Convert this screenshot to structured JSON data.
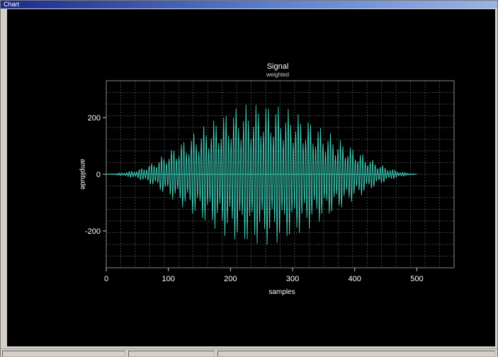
{
  "window": {
    "title": "Chart"
  },
  "chart_data": {
    "type": "line",
    "title": "Signal",
    "subtitle": "weighted",
    "xlabel": "samples",
    "ylabel": "amplitude",
    "xlim": [
      0,
      560
    ],
    "ylim": [
      -330,
      330
    ],
    "xticks": [
      0,
      100,
      200,
      300,
      400,
      500
    ],
    "yticks": [
      -200,
      0,
      200
    ],
    "x_tick_labels": [
      "0",
      "100",
      "200",
      "300",
      "400",
      "500"
    ],
    "y_tick_labels": [
      "-200",
      "0",
      "200"
    ],
    "grid": true,
    "series": [
      {
        "color": "#40e0c8",
        "envelope": {
          "x": [
            0,
            25,
            50,
            75,
            100,
            125,
            150,
            175,
            200,
            225,
            250,
            275,
            300,
            325,
            350,
            375,
            400,
            425,
            450,
            475,
            500
          ],
          "y": [
            0,
            5,
            15,
            40,
            80,
            120,
            160,
            195,
            230,
            245,
            250,
            245,
            225,
            195,
            160,
            125,
            90,
            55,
            25,
            8,
            0
          ]
        },
        "oscillation_period": 4
      }
    ],
    "colors": {
      "background": "#000000",
      "grid": "#5a5a5a",
      "trace": "#40e0c8",
      "text": "#ffffff"
    }
  }
}
